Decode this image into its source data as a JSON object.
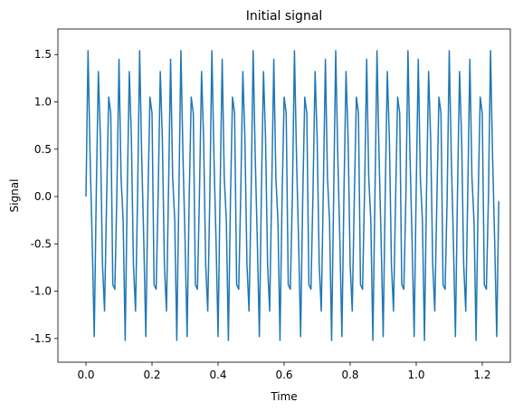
{
  "chart_data": {
    "type": "line",
    "title": "Initial signal",
    "xlabel": "Time",
    "ylabel": "Signal",
    "x": [
      0,
      0.00625,
      0.0125,
      0.01875,
      0.025,
      0.03125,
      0.0375,
      0.04375,
      0.05,
      0.05625,
      0.0625,
      0.06875,
      0.075,
      0.08125,
      0.0875,
      0.09375,
      0.1,
      0.10625,
      0.1125,
      0.11875,
      0.125,
      0.13125,
      0.1375,
      0.14375,
      0.15,
      0.15625,
      0.1625,
      0.16875,
      0.175,
      0.18125,
      0.1875,
      0.19375,
      0.2,
      0.20625,
      0.2125,
      0.21875,
      0.225,
      0.23125,
      0.2375,
      0.24375,
      0.25,
      0.25625,
      0.2625,
      0.26875,
      0.275,
      0.28125,
      0.2875,
      0.29375,
      0.3,
      0.30625,
      0.3125,
      0.31875,
      0.325,
      0.33125,
      0.3375,
      0.34375,
      0.35,
      0.35625,
      0.3625,
      0.36875,
      0.375,
      0.38125,
      0.3875,
      0.39375,
      0.4,
      0.40625,
      0.4125,
      0.41875,
      0.425,
      0.43125,
      0.4375,
      0.44375,
      0.45,
      0.45625,
      0.4625,
      0.46875,
      0.475,
      0.48125,
      0.4875,
      0.49375,
      0.5,
      0.50625,
      0.5125,
      0.51875,
      0.525,
      0.53125,
      0.5375,
      0.54375,
      0.55,
      0.55625,
      0.5625,
      0.56875,
      0.575,
      0.58125,
      0.5875,
      0.59375,
      0.6,
      0.60625,
      0.6125,
      0.61875,
      0.625,
      0.63125,
      0.6375,
      0.64375,
      0.65,
      0.65625,
      0.6625,
      0.66875,
      0.675,
      0.68125,
      0.6875,
      0.69375,
      0.7,
      0.70625,
      0.7125,
      0.71875,
      0.725,
      0.73125,
      0.7375,
      0.74375,
      0.75,
      0.75625,
      0.7625,
      0.76875,
      0.775,
      0.78125,
      0.7875,
      0.79375,
      0.8,
      0.80625,
      0.8125,
      0.81875,
      0.825,
      0.83125,
      0.8375,
      0.84375,
      0.85,
      0.85625,
      0.8625,
      0.86875,
      0.875,
      0.88125,
      0.8875,
      0.89375,
      0.9,
      0.90625,
      0.9125,
      0.91875,
      0.925,
      0.93125,
      0.9375,
      0.94375,
      0.95,
      0.95625,
      0.9625,
      0.96875,
      0.975,
      0.98125,
      0.9875,
      0.99375,
      1.0,
      1.00625,
      1.0125,
      1.01875,
      1.025,
      1.03125,
      1.0375,
      1.04375,
      1.05,
      1.05625,
      1.0625,
      1.06875,
      1.075,
      1.08125,
      1.0875,
      1.09375,
      1.1,
      1.10625,
      1.1125,
      1.11875,
      1.125,
      1.13125,
      1.1375,
      1.14375,
      1.15,
      1.15625,
      1.1625,
      1.16875,
      1.175,
      1.18125,
      1.1875,
      1.19375,
      1.2,
      1.20625,
      1.2125,
      1.21875,
      1.225,
      1.23125,
      1.2375,
      1.24375,
      1.25
    ],
    "series": [
      {
        "color": "#1f77b4",
        "values": [
          0.0,
          1.54,
          0.42,
          -0.46,
          -1.48,
          0.05,
          1.32,
          0.61,
          -0.72,
          -1.21,
          -0.03,
          1.05,
          0.88,
          -0.93,
          -0.98,
          0.08,
          1.45,
          0.2,
          -0.25,
          -1.52,
          0.05,
          1.32,
          0.61,
          -0.72,
          -1.21,
          0.0,
          1.54,
          0.42,
          -0.46,
          -1.48,
          -0.03,
          1.05,
          0.88,
          -0.93,
          -0.98,
          0.05,
          1.32,
          0.61,
          -0.72,
          -1.21,
          0.08,
          1.45,
          0.2,
          -0.25,
          -1.52,
          0.0,
          1.54,
          0.42,
          -0.46,
          -1.48,
          -0.03,
          1.05,
          0.88,
          -0.93,
          -0.98,
          0.05,
          1.32,
          0.61,
          -0.72,
          -1.21,
          0.0,
          1.54,
          0.42,
          -0.46,
          -1.48,
          0.08,
          1.45,
          0.2,
          -0.25,
          -1.52,
          -0.03,
          1.05,
          0.88,
          -0.93,
          -0.98,
          0.05,
          1.32,
          0.61,
          -0.72,
          -1.21,
          0.0,
          1.54,
          0.42,
          -0.46,
          -1.48,
          0.05,
          1.32,
          0.61,
          -0.72,
          -1.21,
          0.08,
          1.45,
          0.2,
          -0.25,
          -1.52,
          -0.03,
          1.05,
          0.88,
          -0.93,
          -0.98,
          0.0,
          1.54,
          0.42,
          -0.46,
          -1.48,
          -0.03,
          1.05,
          0.88,
          -0.93,
          -0.98,
          0.05,
          1.32,
          0.61,
          -0.72,
          -1.21,
          0.08,
          1.45,
          0.2,
          -0.25,
          -1.52,
          0.0,
          1.54,
          0.42,
          -0.46,
          -1.48,
          0.05,
          1.32,
          0.61,
          -0.72,
          -1.21,
          -0.03,
          1.05,
          0.88,
          -0.93,
          -0.98,
          0.08,
          1.45,
          0.2,
          -0.25,
          -1.52,
          0.0,
          1.54,
          0.42,
          -0.46,
          -1.48,
          0.05,
          1.32,
          0.61,
          -0.72,
          -1.21,
          -0.03,
          1.05,
          0.88,
          -0.93,
          -0.98,
          0.0,
          1.54,
          0.42,
          -0.46,
          -1.48,
          0.08,
          1.45,
          0.2,
          -0.25,
          -1.52,
          0.05,
          1.32,
          0.61,
          -0.72,
          -1.21,
          -0.03,
          1.05,
          0.88,
          -0.93,
          -0.98,
          0.0,
          1.54,
          0.42,
          -0.46,
          -1.48,
          0.05,
          1.32,
          0.61,
          -0.72,
          -1.21,
          0.08,
          1.45,
          0.2,
          -0.25,
          -1.52,
          -0.03,
          1.05,
          0.88,
          -0.93,
          -0.98,
          0.0,
          1.54,
          0.42,
          -0.46,
          -1.48,
          -0.05
        ]
      }
    ],
    "xlim": [
      -0.085,
      1.285
    ],
    "ylim": [
      -1.75,
      1.77
    ],
    "xticks": [
      {
        "value": 0,
        "label": "0.0"
      },
      0.2,
      0.4,
      0.6,
      0.8,
      {
        "value": 1,
        "label": "1.0"
      },
      1.2
    ],
    "yticks": [
      -1.5,
      {
        "value": -1,
        "label": "-1.0"
      },
      -0.5,
      {
        "value": 0,
        "label": "0.0"
      },
      0.5,
      {
        "value": 1,
        "label": "1.0"
      },
      1.5
    ]
  }
}
